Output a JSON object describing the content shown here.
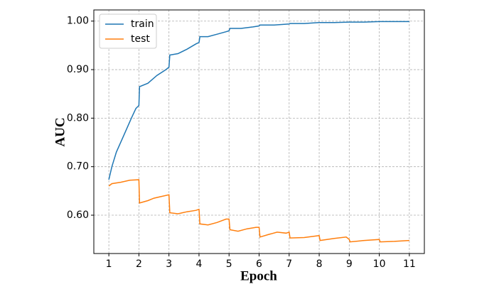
{
  "chart_data": {
    "type": "line",
    "xlabel": "Epoch",
    "ylabel": "AUC",
    "xlim": [
      0.5,
      11.5
    ],
    "xticks": [
      1,
      2,
      3,
      4,
      5,
      6,
      7,
      8,
      9,
      10,
      11
    ],
    "ylim": [
      0.521,
      1.023
    ],
    "yticks": [
      {
        "value": 0.6,
        "label": "0.60"
      },
      {
        "value": 0.7,
        "label": "0.70"
      },
      {
        "value": 0.8,
        "label": "0.80"
      },
      {
        "value": 0.9,
        "label": "0.90"
      },
      {
        "value": 1.0,
        "label": "1.00"
      }
    ],
    "grid": true,
    "legend": "upper left",
    "series": [
      {
        "name": "train",
        "color": "#1f77b4",
        "x": [
          1.0,
          1.1,
          1.25,
          1.5,
          1.75,
          1.9,
          2.0,
          2.02,
          2.3,
          2.6,
          2.9,
          3.0,
          3.03,
          3.3,
          3.6,
          3.9,
          4.0,
          4.03,
          4.3,
          4.6,
          4.9,
          5.0,
          5.03,
          5.4,
          5.8,
          6.0,
          6.03,
          6.5,
          7.0,
          7.03,
          7.5,
          8.0,
          8.5,
          9.0,
          9.5,
          10.0,
          10.5,
          11.0
        ],
        "values": [
          0.673,
          0.7,
          0.73,
          0.765,
          0.8,
          0.82,
          0.826,
          0.865,
          0.872,
          0.888,
          0.9,
          0.905,
          0.93,
          0.933,
          0.942,
          0.953,
          0.956,
          0.968,
          0.968,
          0.973,
          0.978,
          0.98,
          0.985,
          0.985,
          0.988,
          0.99,
          0.992,
          0.992,
          0.994,
          0.995,
          0.995,
          0.997,
          0.997,
          0.998,
          0.998,
          0.999,
          0.999,
          0.999
        ]
      },
      {
        "name": "test",
        "color": "#ff7f0e",
        "x": [
          1.0,
          1.1,
          1.4,
          1.7,
          2.0,
          2.02,
          2.3,
          2.5,
          2.7,
          3.0,
          3.03,
          3.3,
          3.6,
          3.9,
          4.0,
          4.03,
          4.3,
          4.6,
          4.9,
          5.0,
          5.03,
          5.3,
          5.6,
          5.9,
          6.0,
          6.03,
          6.3,
          6.6,
          6.9,
          7.0,
          7.03,
          7.5,
          8.0,
          8.03,
          8.5,
          8.9,
          9.0,
          9.03,
          9.5,
          10.0,
          10.03,
          10.5,
          11.0
        ],
        "values": [
          0.66,
          0.665,
          0.668,
          0.672,
          0.673,
          0.625,
          0.63,
          0.635,
          0.638,
          0.642,
          0.605,
          0.603,
          0.607,
          0.61,
          0.612,
          0.582,
          0.58,
          0.585,
          0.592,
          0.592,
          0.57,
          0.567,
          0.572,
          0.575,
          0.575,
          0.555,
          0.56,
          0.565,
          0.563,
          0.565,
          0.553,
          0.554,
          0.558,
          0.548,
          0.552,
          0.555,
          0.55,
          0.545,
          0.548,
          0.55,
          0.545,
          0.546,
          0.548
        ]
      }
    ]
  }
}
